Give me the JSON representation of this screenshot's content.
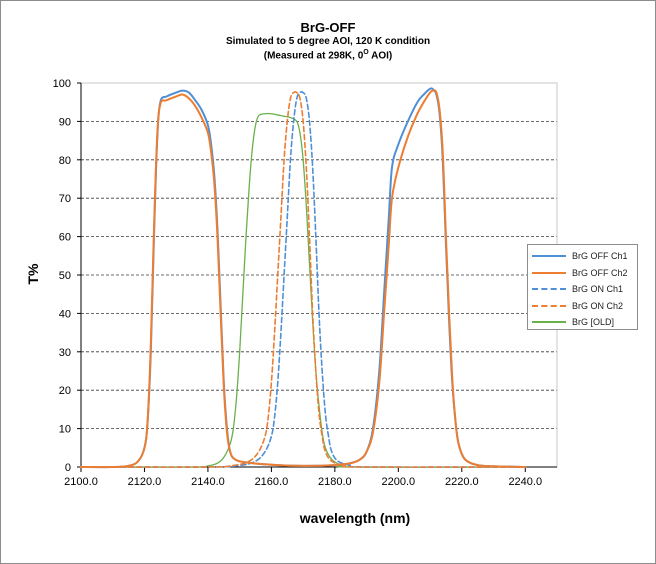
{
  "chart_data": {
    "type": "line",
    "title": "BrG-OFF",
    "subtitle_line1": "Simulated to 5 degree AOI, 120 K condition",
    "subtitle_line2_prefix": "(Measured at 298K, 0",
    "subtitle_line2_sup": "O",
    "subtitle_line2_suffix": " AOI)",
    "xlabel": "wavelength (nm)",
    "ylabel": "T%",
    "xlim": [
      2100,
      2250
    ],
    "ylim": [
      0,
      100
    ],
    "x_ticks": [
      "2100.0",
      "2120.0",
      "2140.0",
      "2160.0",
      "2180.0",
      "2200.0",
      "2220.0",
      "2240.0"
    ],
    "x_tick_values": [
      2100,
      2120,
      2140,
      2160,
      2180,
      2200,
      2220,
      2240
    ],
    "y_ticks": [
      "0",
      "10",
      "20",
      "30",
      "40",
      "50",
      "60",
      "70",
      "80",
      "90",
      "100"
    ],
    "y_tick_values": [
      0,
      10,
      20,
      30,
      40,
      50,
      60,
      70,
      80,
      90,
      100
    ],
    "grid": "horizontal dashed",
    "legend_position": "right",
    "series": [
      {
        "name": "BrG OFF Ch1",
        "color": "#4f8fd6",
        "dash": "solid",
        "points": [
          [
            2100,
            0
          ],
          [
            2110,
            0
          ],
          [
            2115,
            0.3
          ],
          [
            2118,
            1.5
          ],
          [
            2120,
            5
          ],
          [
            2121,
            12
          ],
          [
            2122,
            30
          ],
          [
            2123,
            60
          ],
          [
            2124,
            85
          ],
          [
            2125,
            95
          ],
          [
            2127,
            96.5
          ],
          [
            2130,
            97.5
          ],
          [
            2132,
            98
          ],
          [
            2134,
            97.5
          ],
          [
            2136,
            95.5
          ],
          [
            2138,
            93
          ],
          [
            2140,
            89
          ],
          [
            2141,
            84
          ],
          [
            2142,
            76
          ],
          [
            2143,
            62
          ],
          [
            2144,
            42
          ],
          [
            2145,
            22
          ],
          [
            2146,
            10
          ],
          [
            2147,
            4
          ],
          [
            2148.5,
            2
          ],
          [
            2152,
            1.2
          ],
          [
            2160,
            0.6
          ],
          [
            2170,
            0.3
          ],
          [
            2180,
            0.5
          ],
          [
            2185,
            1
          ],
          [
            2188,
            2
          ],
          [
            2190,
            4
          ],
          [
            2192,
            10
          ],
          [
            2194,
            25
          ],
          [
            2195.5,
            45
          ],
          [
            2197,
            65
          ],
          [
            2198,
            78
          ],
          [
            2200,
            84
          ],
          [
            2203,
            90
          ],
          [
            2206,
            95
          ],
          [
            2208,
            97
          ],
          [
            2210,
            98.5
          ],
          [
            2211,
            98.3
          ],
          [
            2212,
            97
          ],
          [
            2213,
            92
          ],
          [
            2214,
            80
          ],
          [
            2215,
            58
          ],
          [
            2216,
            38
          ],
          [
            2217,
            22
          ],
          [
            2218,
            12
          ],
          [
            2219,
            6
          ],
          [
            2221,
            2
          ],
          [
            2225,
            0.5
          ],
          [
            2230,
            0.2
          ],
          [
            2240,
            0
          ]
        ]
      },
      {
        "name": "BrG OFF Ch2",
        "color": "#ed7d31",
        "dash": "solid",
        "points": [
          [
            2100,
            0
          ],
          [
            2110,
            0
          ],
          [
            2115,
            0.3
          ],
          [
            2118,
            1.5
          ],
          [
            2120,
            5
          ],
          [
            2121,
            12
          ],
          [
            2122,
            32
          ],
          [
            2123,
            62
          ],
          [
            2124,
            86
          ],
          [
            2125,
            94.5
          ],
          [
            2127,
            95.5
          ],
          [
            2130,
            96.5
          ],
          [
            2132,
            97
          ],
          [
            2134,
            96
          ],
          [
            2136,
            94
          ],
          [
            2138,
            91
          ],
          [
            2140,
            87
          ],
          [
            2141,
            82
          ],
          [
            2142,
            74
          ],
          [
            2143,
            60
          ],
          [
            2144,
            40
          ],
          [
            2145,
            21
          ],
          [
            2146,
            9
          ],
          [
            2147,
            4
          ],
          [
            2148.5,
            2
          ],
          [
            2152,
            1.2
          ],
          [
            2160,
            0.6
          ],
          [
            2170,
            0.3
          ],
          [
            2180,
            0.5
          ],
          [
            2185,
            1
          ],
          [
            2188,
            2
          ],
          [
            2190,
            4
          ],
          [
            2192,
            9
          ],
          [
            2194,
            22
          ],
          [
            2195.5,
            40
          ],
          [
            2197,
            58
          ],
          [
            2198,
            70
          ],
          [
            2200,
            78
          ],
          [
            2203,
            86
          ],
          [
            2206,
            92
          ],
          [
            2208,
            95
          ],
          [
            2210,
            97.5
          ],
          [
            2211,
            98
          ],
          [
            2212,
            97.5
          ],
          [
            2213,
            93
          ],
          [
            2214,
            82
          ],
          [
            2215,
            60
          ],
          [
            2216,
            40
          ],
          [
            2217,
            23
          ],
          [
            2218,
            12
          ],
          [
            2219,
            6
          ],
          [
            2221,
            2
          ],
          [
            2225,
            0.5
          ],
          [
            2230,
            0.2
          ],
          [
            2240,
            0
          ]
        ]
      },
      {
        "name": "BrG ON Ch1",
        "color": "#4f8fd6",
        "dash": "dashed",
        "points": [
          [
            2100,
            0
          ],
          [
            2140,
            0
          ],
          [
            2150,
            0.4
          ],
          [
            2155,
            1.5
          ],
          [
            2158,
            4
          ],
          [
            2160,
            8
          ],
          [
            2161,
            13
          ],
          [
            2162,
            22
          ],
          [
            2163,
            35
          ],
          [
            2164,
            50
          ],
          [
            2165,
            65
          ],
          [
            2166,
            80
          ],
          [
            2167,
            90
          ],
          [
            2168,
            96
          ],
          [
            2169,
            97.5
          ],
          [
            2170,
            97.5
          ],
          [
            2171,
            96
          ],
          [
            2172,
            90
          ],
          [
            2173,
            78
          ],
          [
            2174,
            60
          ],
          [
            2175,
            40
          ],
          [
            2176,
            25
          ],
          [
            2177,
            14
          ],
          [
            2178,
            8
          ],
          [
            2179,
            4
          ],
          [
            2181,
            1.5
          ],
          [
            2185,
            0.4
          ],
          [
            2190,
            0
          ],
          [
            2240,
            0
          ]
        ]
      },
      {
        "name": "BrG ON Ch2",
        "color": "#ed7d31",
        "dash": "dashed",
        "points": [
          [
            2100,
            0
          ],
          [
            2140,
            0
          ],
          [
            2148,
            0.4
          ],
          [
            2153,
            1.5
          ],
          [
            2156,
            4
          ],
          [
            2158,
            8
          ],
          [
            2159,
            13
          ],
          [
            2160,
            22
          ],
          [
            2161,
            35
          ],
          [
            2162,
            50
          ],
          [
            2163,
            65
          ],
          [
            2164,
            80
          ],
          [
            2165,
            90
          ],
          [
            2166,
            96
          ],
          [
            2167,
            97.5
          ],
          [
            2168,
            97.5
          ],
          [
            2169,
            96
          ],
          [
            2170,
            90
          ],
          [
            2171,
            78
          ],
          [
            2172,
            60
          ],
          [
            2173,
            40
          ],
          [
            2174,
            25
          ],
          [
            2175,
            14
          ],
          [
            2176,
            8
          ],
          [
            2177,
            4
          ],
          [
            2179,
            1.5
          ],
          [
            2183,
            0.4
          ],
          [
            2188,
            0
          ],
          [
            2240,
            0
          ]
        ]
      },
      {
        "name": "BrG [OLD]",
        "color": "#6ab04c",
        "dash": "solid",
        "points": [
          [
            2100,
            0
          ],
          [
            2135,
            0
          ],
          [
            2140,
            0.3
          ],
          [
            2143,
            1
          ],
          [
            2145,
            2.5
          ],
          [
            2147,
            6
          ],
          [
            2148,
            10
          ],
          [
            2149,
            18
          ],
          [
            2150,
            30
          ],
          [
            2151,
            45
          ],
          [
            2152,
            60
          ],
          [
            2153,
            73
          ],
          [
            2154,
            83
          ],
          [
            2155,
            89
          ],
          [
            2156,
            91.5
          ],
          [
            2158,
            92
          ],
          [
            2160,
            92
          ],
          [
            2163,
            91.5
          ],
          [
            2166,
            91
          ],
          [
            2168,
            90
          ],
          [
            2169,
            87
          ],
          [
            2170,
            80
          ],
          [
            2171,
            68
          ],
          [
            2172,
            53
          ],
          [
            2173,
            38
          ],
          [
            2174,
            25
          ],
          [
            2175,
            16
          ],
          [
            2176,
            9
          ],
          [
            2177,
            5
          ],
          [
            2179,
            2
          ],
          [
            2182,
            0.5
          ],
          [
            2186,
            0
          ],
          [
            2240,
            0
          ]
        ]
      }
    ]
  }
}
